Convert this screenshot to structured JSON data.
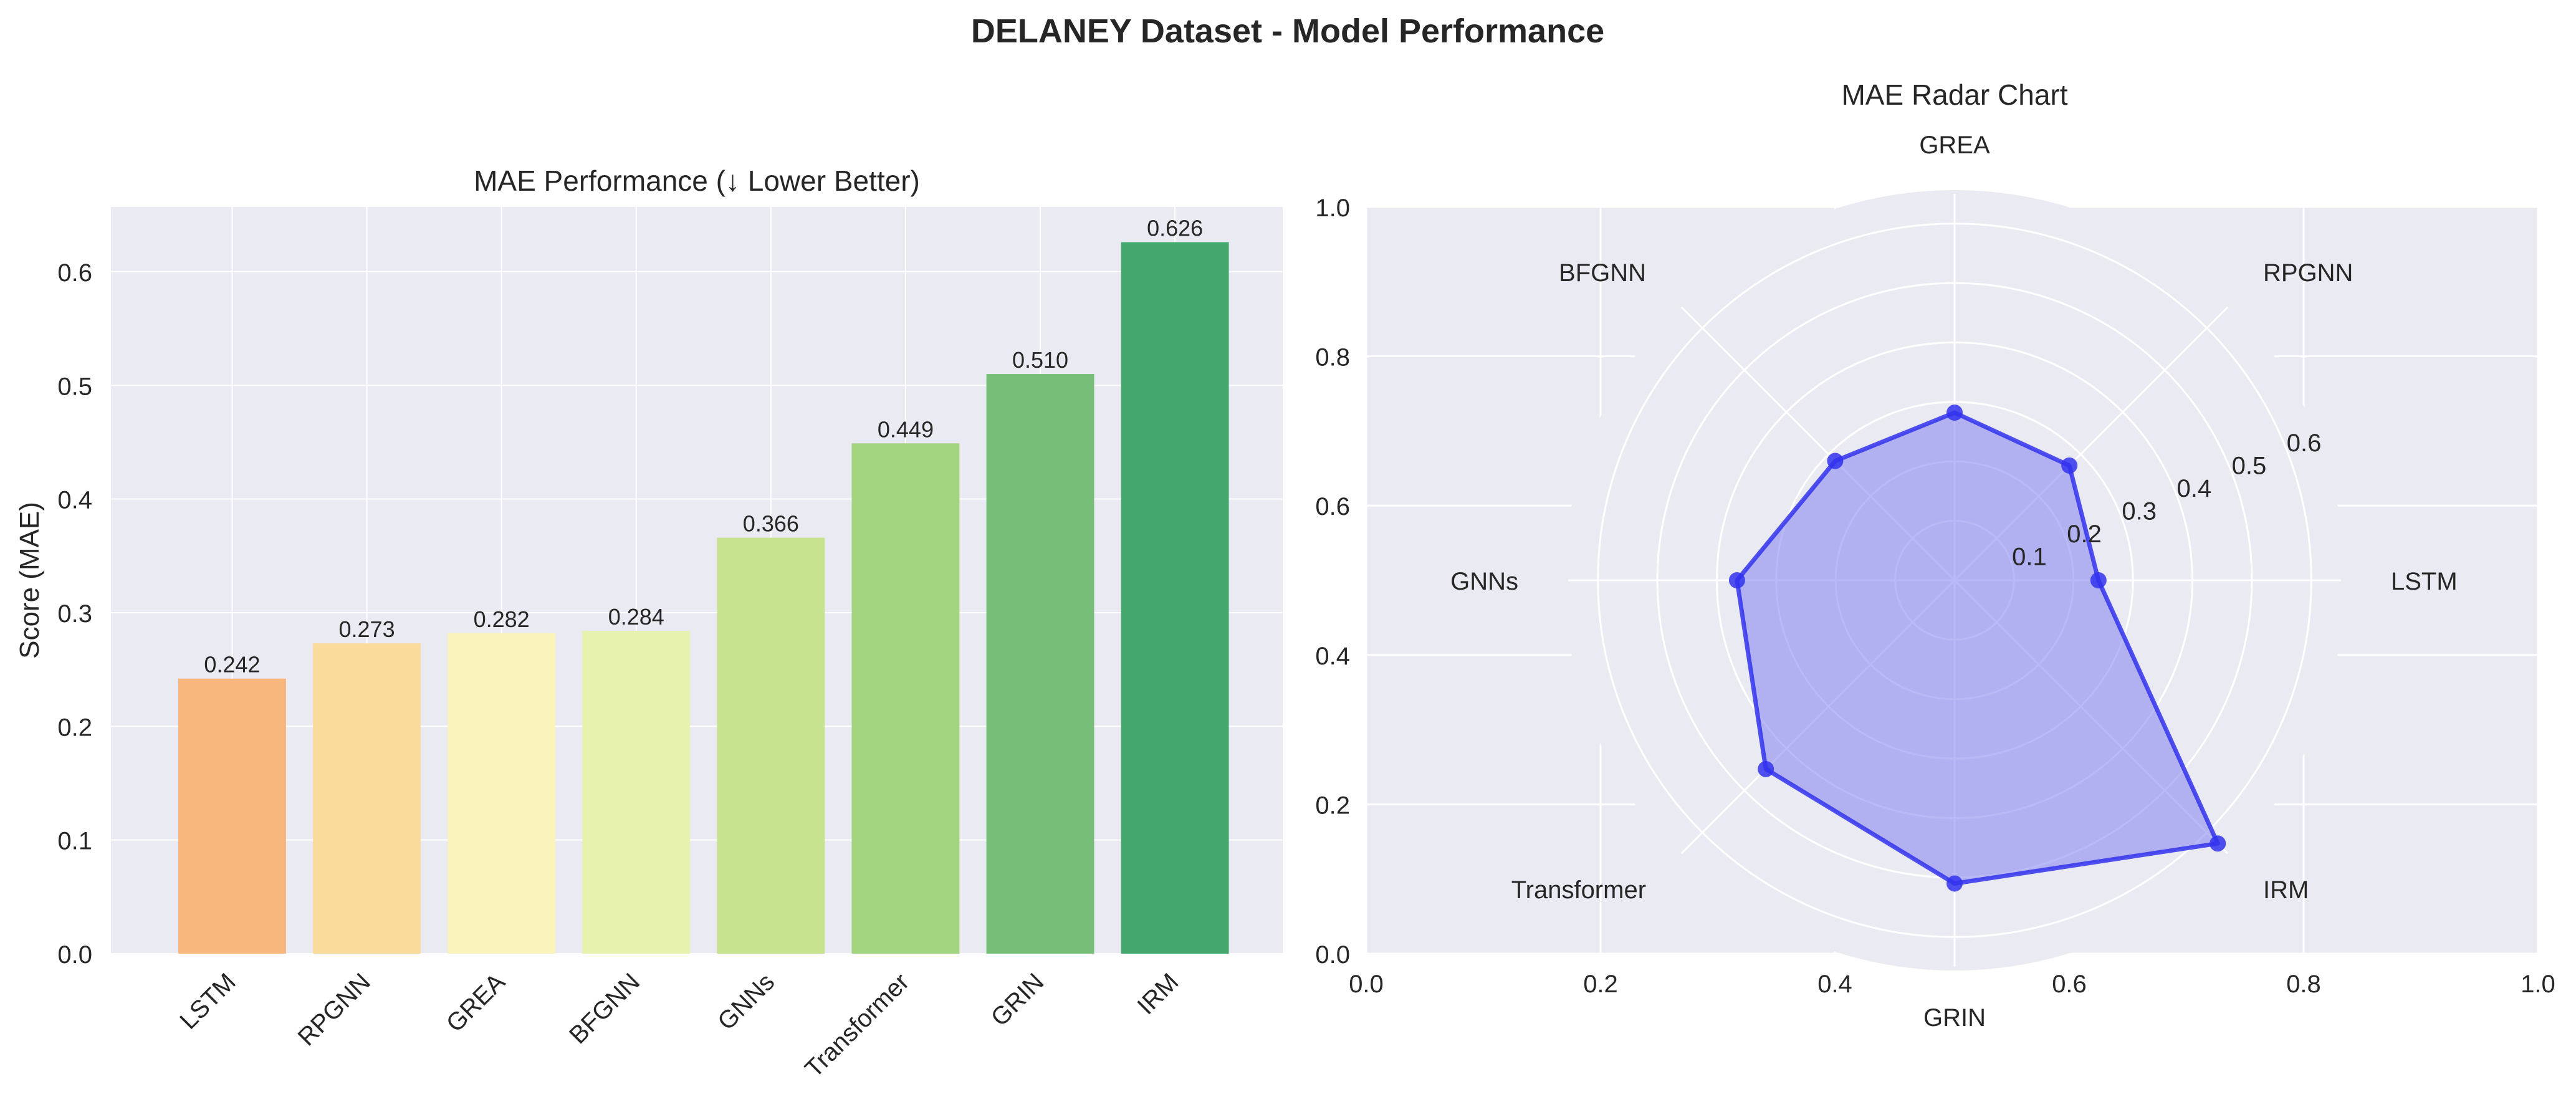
{
  "figure": {
    "suptitle": "DELANEY Dataset - Model Performance"
  },
  "chart_data": [
    {
      "type": "bar",
      "title": "MAE Performance (↓ Lower Better)",
      "xlabel": "",
      "ylabel": "Score (MAE)",
      "ylim": [
        0,
        0.657
      ],
      "yticks": [
        "0.0",
        "0.1",
        "0.2",
        "0.3",
        "0.4",
        "0.5",
        "0.6"
      ],
      "categories": [
        "LSTM",
        "RPGNN",
        "GREA",
        "BFGNN",
        "GNNs",
        "Transformer",
        "GRIN",
        "IRM"
      ],
      "values": [
        0.242,
        0.273,
        0.282,
        0.284,
        0.366,
        0.449,
        0.51,
        0.626
      ],
      "value_labels": [
        "0.242",
        "0.273",
        "0.282",
        "0.284",
        "0.366",
        "0.449",
        "0.510",
        "0.626"
      ],
      "colors": [
        "#f8b87d",
        "#f9db9b",
        "#faf3bc",
        "#e6f2ae",
        "#c8e390",
        "#a3d47f",
        "#77bf78",
        "#44a76b"
      ],
      "grid": true
    },
    {
      "type": "radar",
      "title": "MAE Radar Chart",
      "categories": [
        "LSTM",
        "RPGNN",
        "GREA",
        "BFGNN",
        "GNNs",
        "Transformer",
        "GRIN",
        "IRM"
      ],
      "values": [
        0.242,
        0.273,
        0.282,
        0.284,
        0.366,
        0.449,
        0.51,
        0.626
      ],
      "rmax": 0.65,
      "rticks": [
        "0.1",
        "0.2",
        "0.3",
        "0.4",
        "0.5",
        "0.6"
      ],
      "rtick_values": [
        0.1,
        0.2,
        0.3,
        0.4,
        0.5,
        0.6
      ],
      "frame_xticks": [
        "0.0",
        "0.2",
        "0.4",
        "0.6",
        "0.8",
        "1.0"
      ],
      "frame_yticks": [
        "0.0",
        "0.2",
        "0.4",
        "0.6",
        "0.8",
        "1.0"
      ],
      "color": "#3333ee",
      "fill_color": "#8a8af0"
    }
  ]
}
